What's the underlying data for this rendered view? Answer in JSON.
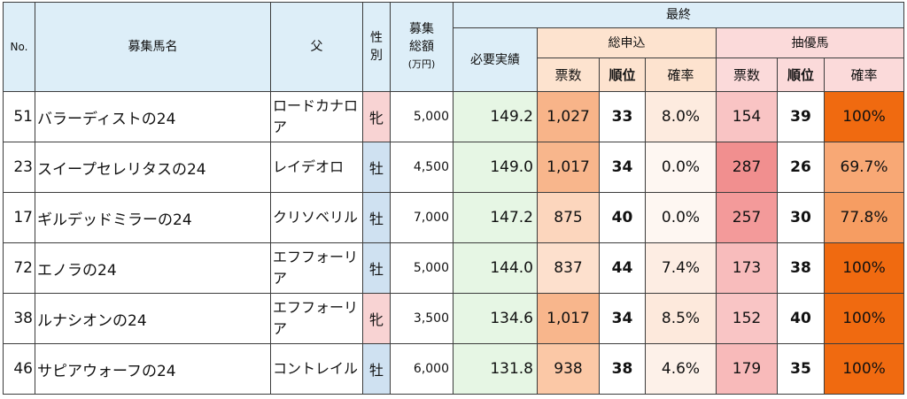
{
  "header": {
    "no": "No.",
    "name": "募集馬名",
    "sire": "父",
    "sex_line1": "性",
    "sex_line2": "別",
    "total_line1": "募集",
    "total_line2": "総額",
    "total_unit": "(万円)",
    "final": "最終",
    "required": "必要実績",
    "application_group": "総申込",
    "lottery_group": "抽優馬",
    "votes": "票数",
    "rank": "順位",
    "rate": "確率"
  },
  "rows": [
    {
      "no": "51",
      "name": "バラーディストの24",
      "sire": "ロードカナロア",
      "sex": "牝",
      "sex_kind": "f",
      "total": "5,000",
      "required": "149.2",
      "app_votes": "1,027",
      "app_rank": "33",
      "app_rate": "8.0%",
      "lot_votes": "154",
      "lot_rank": "39",
      "lot_rate": "100%",
      "colors": {
        "app_votes": "#f8b489",
        "app_rate": "#fdebdf",
        "lot_votes": "#f9c4c4",
        "lot_rate": "#f06a10"
      }
    },
    {
      "no": "23",
      "name": "スイープセレリタスの24",
      "sire": "レイデオロ",
      "sex": "牡",
      "sex_kind": "m",
      "total": "4,500",
      "required": "149.0",
      "app_votes": "1,017",
      "app_rank": "34",
      "app_rate": "0.0%",
      "lot_votes": "287",
      "lot_rank": "26",
      "lot_rate": "69.7%",
      "colors": {
        "app_votes": "#f8b68c",
        "app_rate": "#fef7f2",
        "lot_votes": "#f18f8f",
        "lot_rate": "#f8a875"
      }
    },
    {
      "no": "17",
      "name": "ギルデッドミラーの24",
      "sire": "クリソベリル",
      "sex": "牡",
      "sex_kind": "m",
      "total": "7,000",
      "required": "147.2",
      "app_votes": "875",
      "app_rank": "40",
      "app_rate": "0.0%",
      "lot_votes": "257",
      "lot_rank": "30",
      "lot_rate": "77.8%",
      "colors": {
        "app_votes": "#fcd6bd",
        "app_rate": "#fef7f2",
        "lot_votes": "#f39a9a",
        "lot_rate": "#f69d62"
      }
    },
    {
      "no": "72",
      "name": "エノラの24",
      "sire": "エフフォーリア",
      "sex": "牡",
      "sex_kind": "m",
      "total": "5,000",
      "required": "144.0",
      "app_votes": "837",
      "app_rank": "44",
      "app_rate": "7.4%",
      "lot_votes": "173",
      "lot_rank": "38",
      "lot_rate": "100%",
      "colors": {
        "app_votes": "#fde0cd",
        "app_rate": "#fdede3",
        "lot_votes": "#f8bcbc",
        "lot_rate": "#f06a10"
      }
    },
    {
      "no": "38",
      "name": "ルナシオンの24",
      "sire": "エフフォーリア",
      "sex": "牝",
      "sex_kind": "f",
      "total": "3,500",
      "required": "134.6",
      "app_votes": "1,017",
      "app_rank": "34",
      "app_rate": "8.5%",
      "lot_votes": "152",
      "lot_rank": "40",
      "lot_rate": "100%",
      "colors": {
        "app_votes": "#f8b68c",
        "app_rate": "#fde9dc",
        "lot_votes": "#f9c5c5",
        "lot_rate": "#f06a10"
      }
    },
    {
      "no": "46",
      "name": "サピアウォーフの24",
      "sire": "コントレイル",
      "sex": "牡",
      "sex_kind": "m",
      "total": "6,000",
      "required": "131.8",
      "app_votes": "938",
      "app_rank": "38",
      "app_rate": "4.6%",
      "lot_votes": "179",
      "lot_rank": "35",
      "lot_rate": "100%",
      "colors": {
        "app_votes": "#fbc8a6",
        "app_rate": "#fdf1e9",
        "lot_votes": "#f8baba",
        "lot_rate": "#f06a10"
      }
    }
  ]
}
